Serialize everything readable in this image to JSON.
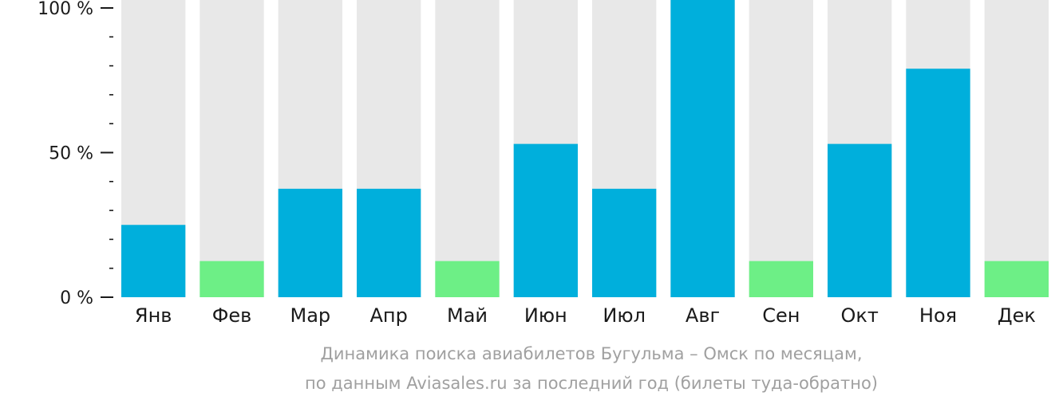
{
  "chart_data": {
    "type": "bar",
    "categories": [
      "Янв",
      "Фев",
      "Мар",
      "Апр",
      "Май",
      "Июн",
      "Июл",
      "Авг",
      "Сен",
      "Окт",
      "Ноя",
      "Дек"
    ],
    "values": [
      25,
      12.5,
      37.5,
      37.5,
      12.5,
      53,
      37.5,
      100,
      12.5,
      53,
      79,
      12.5
    ],
    "ylim": [
      0,
      100
    ],
    "y_ticks": [
      {
        "value": 0,
        "label": "0 %"
      },
      {
        "value": 50,
        "label": "50 %"
      },
      {
        "value": 100,
        "label": "100 %"
      }
    ],
    "y_minor_step": 10,
    "grid": false,
    "caption_line1": "Динамика поиска авиабилетов Бугульма – Омск по месяцам,",
    "caption_line2": "по данным Aviasales.ru за последний год (билеты туда-обратно)",
    "colors": {
      "bar_high": "#00afdc",
      "bar_low": "#6def86",
      "bar_track": "#e8e8e8",
      "tick": "#1a1a1a",
      "caption": "#a0a0a0"
    },
    "low_threshold": 15
  }
}
